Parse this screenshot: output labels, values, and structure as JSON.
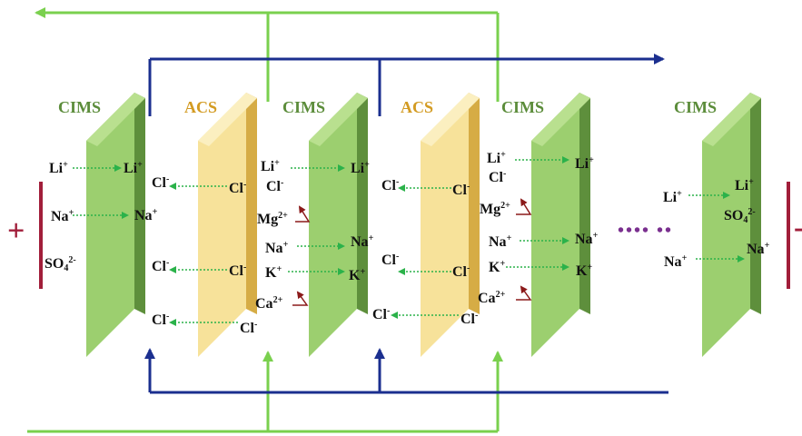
{
  "membranes": [
    {
      "type": "CIMS",
      "label": "CIMS"
    },
    {
      "type": "ACS",
      "label": "ACS"
    },
    {
      "type": "CIMS",
      "label": "CIMS"
    },
    {
      "type": "ACS",
      "label": "ACS"
    },
    {
      "type": "CIMS",
      "label": "CIMS"
    },
    {
      "type": "CIMS",
      "label": "CIMS"
    }
  ],
  "electrodes": {
    "anode_sign": "+",
    "cathode_sign": "-"
  },
  "ellipsis": "•••• ••",
  "colors": {
    "cims_face": "#9ccf6f",
    "cims_edge": "#5e8f3c",
    "acs_face": "#f7e29a",
    "acs_edge": "#d6ac45",
    "green_flow": "#7ad04e",
    "blue_flow": "#1b2f8f",
    "electrode": "#a11e3a",
    "cation_arrow": "#2bb24a",
    "anion_arrow": "#2bb24a",
    "blocked_arrow": "#8b1a1a"
  },
  "ions": {
    "li": {
      "sym": "Li",
      "sup": "+"
    },
    "na": {
      "sym": "Na",
      "sup": "+"
    },
    "k": {
      "sym": "K",
      "sup": "+"
    },
    "cl": {
      "sym": "Cl",
      "sup": "-"
    },
    "mg": {
      "sym": "Mg",
      "sup": "2+"
    },
    "ca": {
      "sym": "Ca",
      "sup": "2+"
    },
    "so4": {
      "sym": "SO",
      "sub": "4",
      "sup": "2-"
    }
  }
}
